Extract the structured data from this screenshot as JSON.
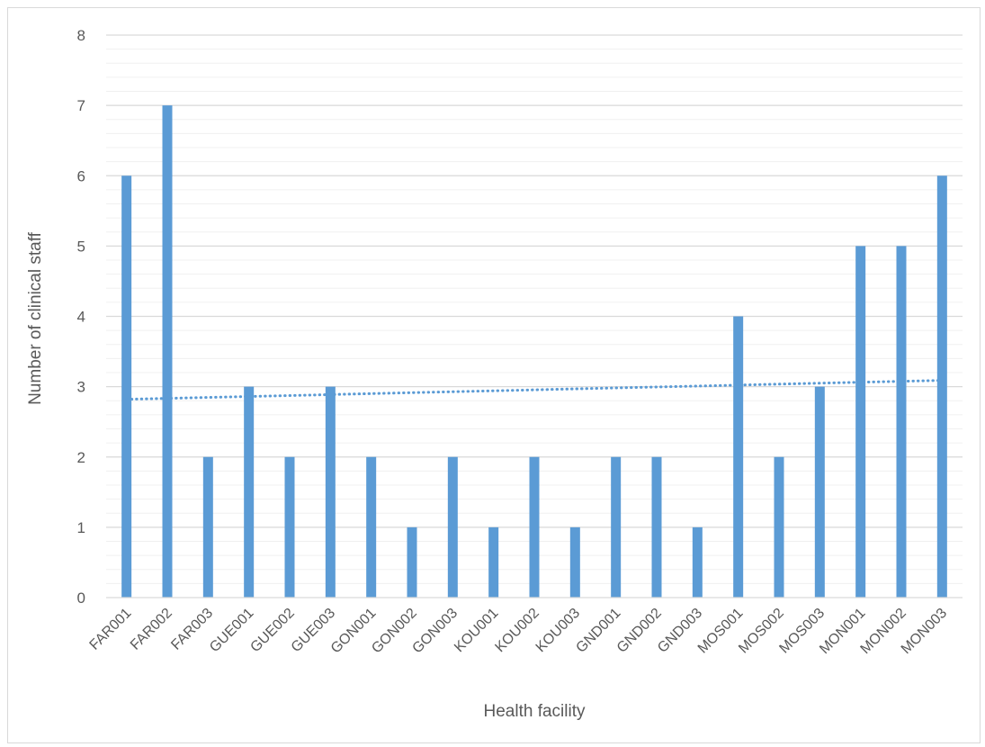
{
  "chart_data": {
    "type": "bar",
    "title": "",
    "xlabel": "Health facility",
    "ylabel": "Number of clinical staff",
    "ylim": [
      0,
      8
    ],
    "yticks": [
      0,
      1,
      2,
      3,
      4,
      5,
      6,
      7,
      8
    ],
    "minor_gridlines": true,
    "grid": true,
    "legend": "none",
    "categories": [
      "FAR001",
      "FAR002",
      "FAR003",
      "GUE001",
      "GUE002",
      "GUE003",
      "GON001",
      "GON002",
      "GON003",
      "KOU001",
      "KOU002",
      "KOU003",
      "GND001",
      "GND002",
      "GND003",
      "MOS001",
      "MOS002",
      "MOS003",
      "MON001",
      "MON002",
      "MON003"
    ],
    "values": [
      6,
      7,
      2,
      3,
      2,
      3,
      2,
      1,
      2,
      1,
      2,
      1,
      2,
      2,
      1,
      4,
      2,
      3,
      5,
      5,
      6
    ],
    "trendline": {
      "type": "linear",
      "style": "dotted",
      "start": 2.82,
      "end": 3.09
    },
    "colors": {
      "bar": "#5b9bd5",
      "trendline": "#5b9bd5",
      "major_grid": "#d9d9d9",
      "minor_grid": "#f0f0f0",
      "axis": "#d9d9d9",
      "text": "#595959"
    }
  }
}
